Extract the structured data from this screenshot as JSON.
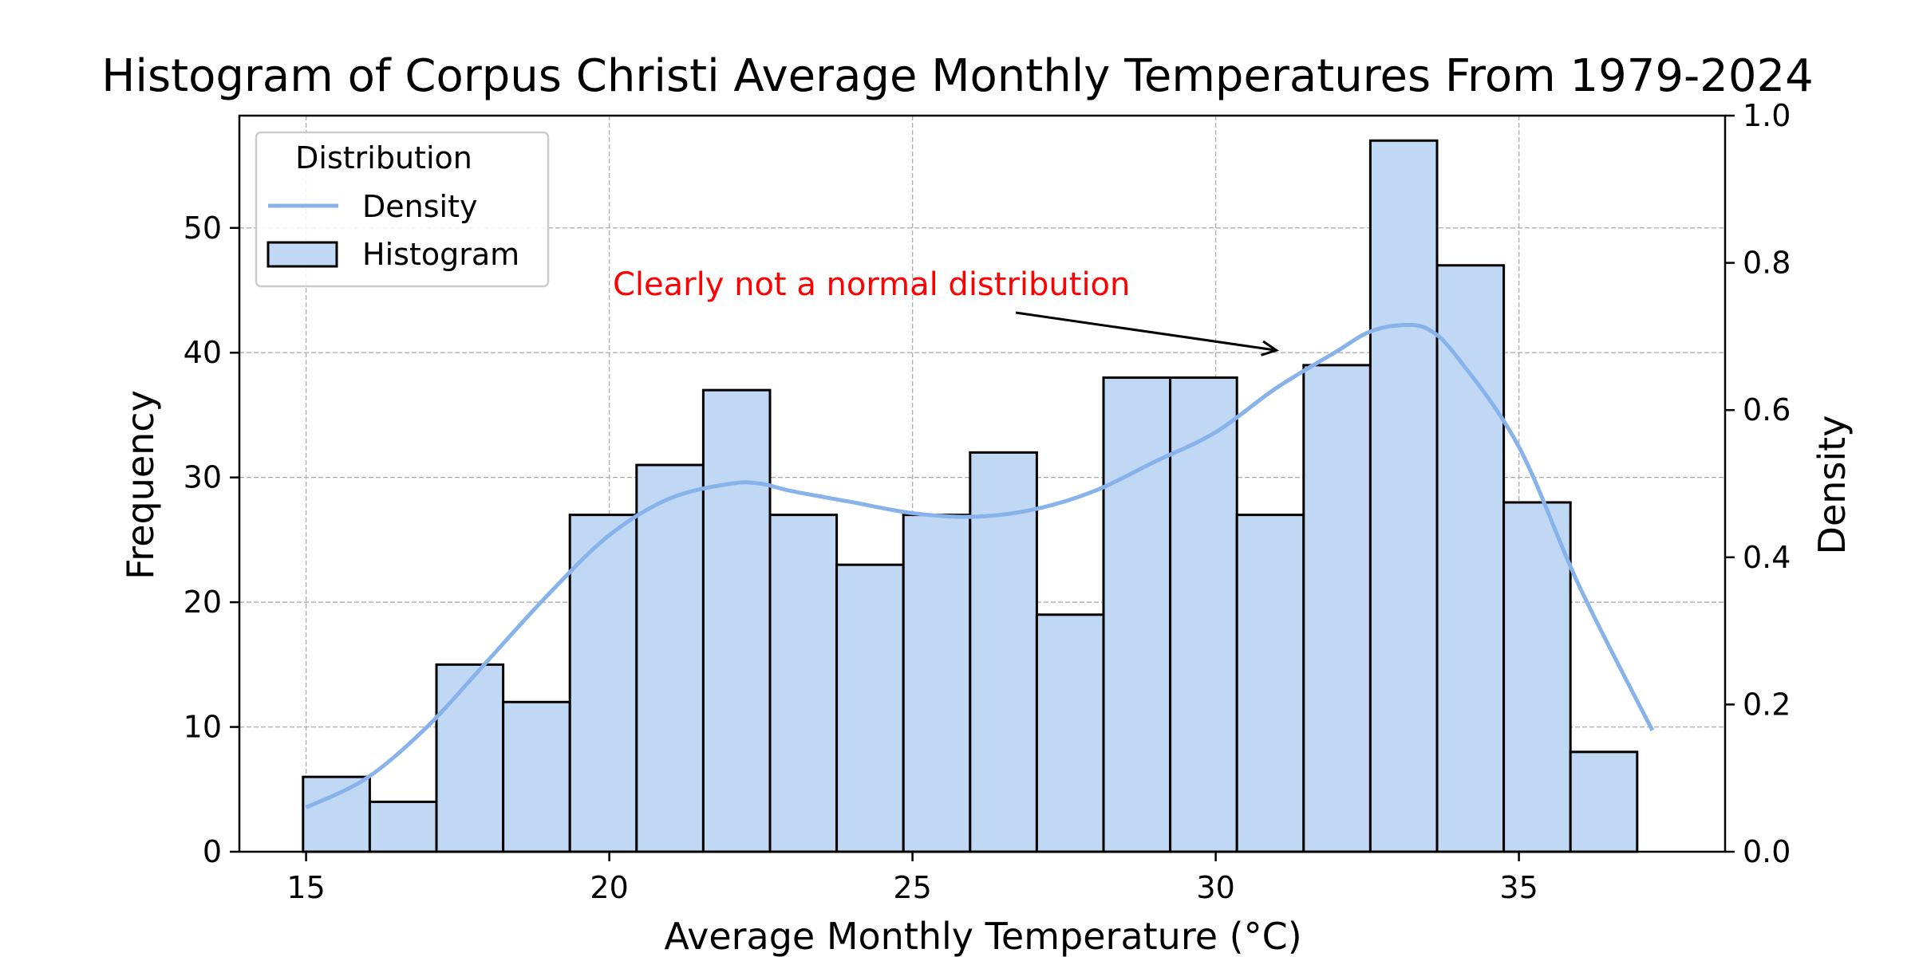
{
  "chart_data": {
    "type": "bar",
    "title": "Histogram of Corpus Christi Average Monthly Temperatures From 1979-2024",
    "xlabel": "Average Monthly Temperature (°C)",
    "ylabel": "Frequency",
    "y2label": "Density",
    "xlim": [
      13.9,
      38.4
    ],
    "ylim": [
      0,
      59
    ],
    "y2lim": [
      0,
      1.0
    ],
    "xticks": [
      15,
      20,
      25,
      30,
      35
    ],
    "yticks": [
      0,
      10,
      20,
      30,
      40,
      50
    ],
    "y2ticks": [
      0.0,
      0.2,
      0.4,
      0.6,
      0.8,
      1.0
    ],
    "grid": true,
    "bins": {
      "edges": [
        14.95,
        16.05,
        17.15,
        18.25,
        19.35,
        20.45,
        21.55,
        22.65,
        23.75,
        24.85,
        25.95,
        27.05,
        28.15,
        29.25,
        30.35,
        31.45,
        32.55,
        33.65,
        34.75,
        35.85,
        36.95
      ],
      "values": [
        6,
        4,
        15,
        12,
        27,
        31,
        37,
        27,
        23,
        27,
        32,
        19,
        38,
        38,
        27,
        39,
        57,
        47,
        28,
        8
      ]
    },
    "density": {
      "x": [
        15.0,
        16.0,
        17.0,
        18.0,
        19.0,
        20.0,
        21.0,
        22.0,
        22.5,
        23.0,
        24.0,
        25.0,
        26.0,
        27.0,
        28.0,
        29.0,
        30.0,
        31.0,
        32.0,
        32.5,
        33.0,
        33.5,
        34.0,
        35.0,
        36.0,
        37.2
      ],
      "y": [
        0.06,
        0.1,
        0.17,
        0.26,
        0.35,
        0.43,
        0.48,
        0.5,
        0.5,
        0.49,
        0.475,
        0.46,
        0.455,
        0.465,
        0.49,
        0.53,
        0.57,
        0.63,
        0.68,
        0.705,
        0.715,
        0.71,
        0.67,
        0.55,
        0.36,
        0.165
      ]
    },
    "legend": {
      "title": "Distribution",
      "position": "top-left",
      "entries": [
        {
          "label": "Density",
          "kind": "line"
        },
        {
          "label": "Histogram",
          "kind": "patch"
        }
      ]
    },
    "annotation": {
      "text": "Clearly not a normal distribution",
      "target_x": 31.0,
      "target_y": 40,
      "color": "#ff0000"
    },
    "colors": {
      "bar_fill": "#c1d8f5",
      "bar_edge": "#000000",
      "density_line": "#87b3ea"
    }
  }
}
